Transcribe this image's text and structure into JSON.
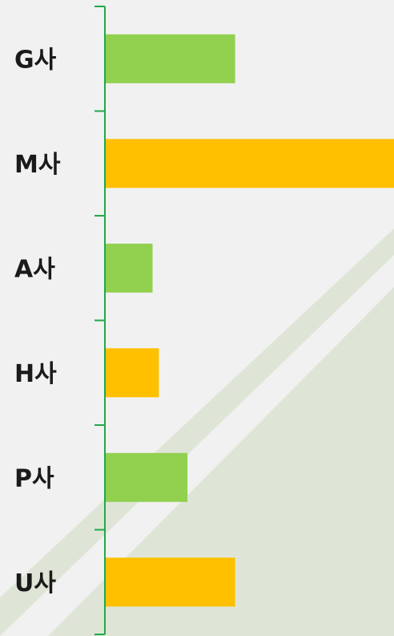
{
  "chart_data": {
    "type": "bar",
    "orientation": "horizontal",
    "categories": [
      "G사",
      "M사",
      "A사",
      "H사",
      "P사",
      "U사"
    ],
    "values": [
      41,
      91,
      15,
      17,
      26,
      41
    ],
    "bar_colors": [
      "#92d050",
      "#ffc000",
      "#92d050",
      "#ffc000",
      "#92d050",
      "#ffc000"
    ],
    "axis_color": "#22a84a",
    "background": "#f1f1f1",
    "decoration_color": "#dfe5d6",
    "xlim": [
      0,
      91
    ],
    "title": "",
    "xlabel": "",
    "ylabel": "",
    "grid": false,
    "legend": "none"
  }
}
